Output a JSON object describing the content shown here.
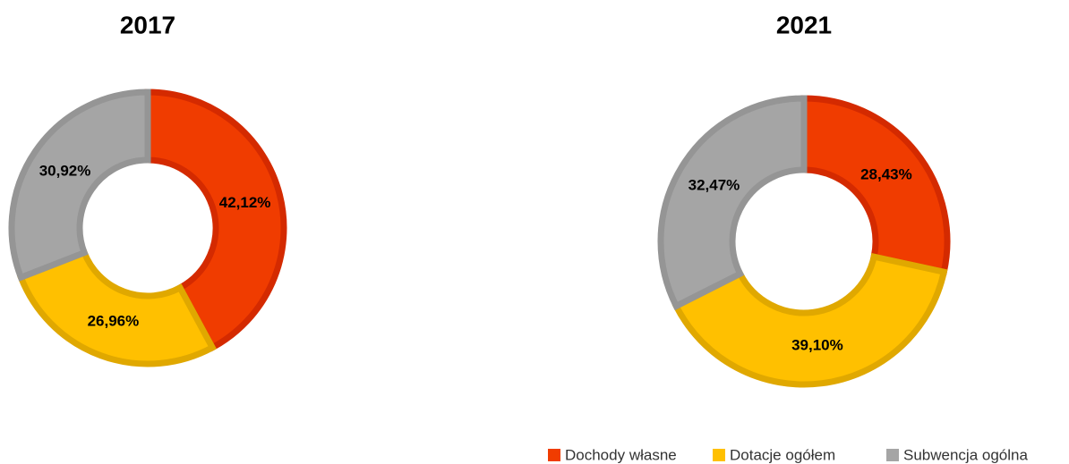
{
  "chart_data": [
    {
      "type": "donut",
      "title": "2017",
      "values": [
        42.12,
        26.96,
        30.92
      ],
      "value_labels": [
        "42,12%",
        "26,96%",
        "30,92%"
      ]
    },
    {
      "type": "donut",
      "title": "2021",
      "values": [
        28.43,
        39.1,
        32.47
      ],
      "value_labels": [
        "28,43%",
        "39,10%",
        "32,47%"
      ]
    }
  ],
  "legend": {
    "labels": [
      "Dochody własne",
      "Dotacje ogółem",
      "Subwencja ogólna"
    ],
    "colors": [
      "#f03c00",
      "#ffc000",
      "#a5a5a5"
    ],
    "position": "bottom-right"
  }
}
